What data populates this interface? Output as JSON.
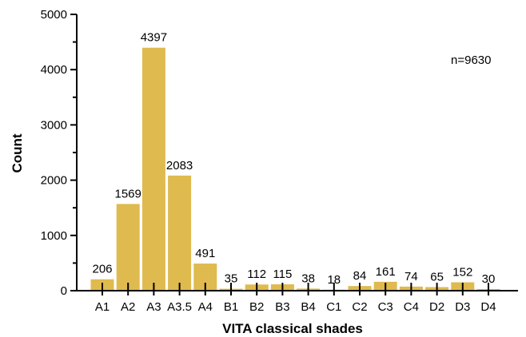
{
  "chart_data": {
    "type": "bar",
    "title": "",
    "xlabel": "VITA classical shades",
    "ylabel": "Count",
    "ylim": [
      0,
      5000
    ],
    "yticks": [
      0,
      1000,
      2000,
      3000,
      4000,
      5000
    ],
    "categories": [
      "A1",
      "A2",
      "A3",
      "A3.5",
      "A4",
      "B1",
      "B2",
      "B3",
      "B4",
      "C1",
      "C2",
      "C3",
      "C4",
      "D2",
      "D3",
      "D4"
    ],
    "values": [
      206,
      1569,
      4397,
      2083,
      491,
      35,
      112,
      115,
      38,
      18,
      84,
      161,
      74,
      65,
      152,
      30
    ],
    "data_labels": [
      "206",
      "1569",
      "4397",
      "2083",
      "491",
      "35",
      "112",
      "115",
      "38",
      "18",
      "84",
      "161",
      "74",
      "65",
      "152",
      "30"
    ],
    "annotation": "n=9630",
    "bar_color": "#dfba4f",
    "grid": false,
    "legend": "none"
  }
}
